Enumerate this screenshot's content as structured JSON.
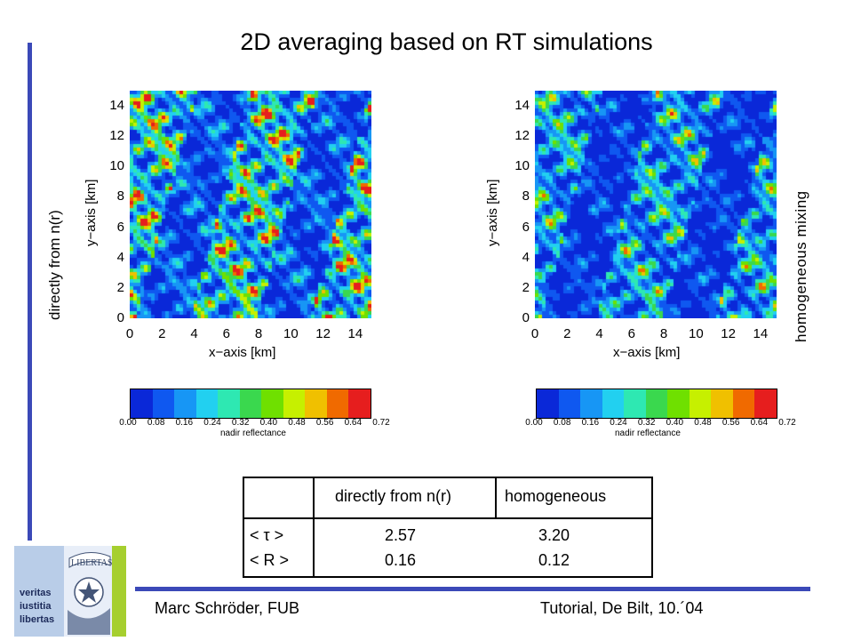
{
  "slide": {
    "title": "2D averaging based on RT simulations",
    "left_side_label": "directly from n(r)",
    "right_side_label": "homogeneous mixing",
    "footer_left": "Marc Schröder, FUB",
    "footer_right": "Tutorial, De Bilt, 10.´04",
    "logo_text": [
      "veritas",
      "iustitia",
      "libertas"
    ],
    "logo_banner": "LIBERTAS"
  },
  "maps": {
    "xlabel": "x−axis [km]",
    "ylabel": "y−axis [km]",
    "x_ticks": [
      "0",
      "2",
      "4",
      "6",
      "8",
      "10",
      "12",
      "14"
    ],
    "y_ticks": [
      "0",
      "2",
      "4",
      "6",
      "8",
      "10",
      "12",
      "14"
    ],
    "xlim": [
      0,
      15
    ],
    "ylim": [
      0,
      15
    ],
    "colorbar_label": "nadir reflectance",
    "colorbar_ticks": [
      "0.00",
      "0.08",
      "0.16",
      "0.24",
      "0.32",
      "0.40",
      "0.48",
      "0.56",
      "0.64",
      "0.72"
    ],
    "colorbar_colors": [
      "#0a28d8",
      "#0f58f0",
      "#1796f5",
      "#22d0f0",
      "#2ee8b2",
      "#3ad84e",
      "#6fe000",
      "#c6f000",
      "#f0c000",
      "#f06a00",
      "#e61e1e"
    ]
  },
  "chart_data": [
    {
      "type": "heatmap",
      "xlabel": "x−axis [km]",
      "ylabel": "y−axis [km]",
      "xlim": [
        0,
        15
      ],
      "ylim": [
        0,
        15
      ],
      "colorbar": {
        "label": "nadir reflectance",
        "range": [
          0.0,
          0.72
        ]
      },
      "panel_label": "directly from n(r)",
      "mean_reflectance": 0.16
    },
    {
      "type": "heatmap",
      "xlabel": "x−axis [km]",
      "ylabel": "y−axis [km]",
      "xlim": [
        0,
        15
      ],
      "ylim": [
        0,
        15
      ],
      "colorbar": {
        "label": "nadir reflectance",
        "range": [
          0.0,
          0.72
        ]
      },
      "panel_label": "homogeneous mixing",
      "mean_reflectance": 0.12
    },
    {
      "type": "table",
      "columns": [
        "",
        "directly from n(r)",
        "homogeneous"
      ],
      "rows": [
        [
          "< τ >",
          "2.57",
          "3.20"
        ],
        [
          "< R >",
          "0.16",
          "0.12"
        ]
      ]
    }
  ],
  "table": {
    "header": [
      "",
      "directly from n(r)",
      "homogeneous"
    ],
    "row_labels": [
      "< τ >",
      "< R >"
    ],
    "col1": [
      "2.57",
      "0.16"
    ],
    "col2": [
      "3.20",
      "0.12"
    ]
  }
}
